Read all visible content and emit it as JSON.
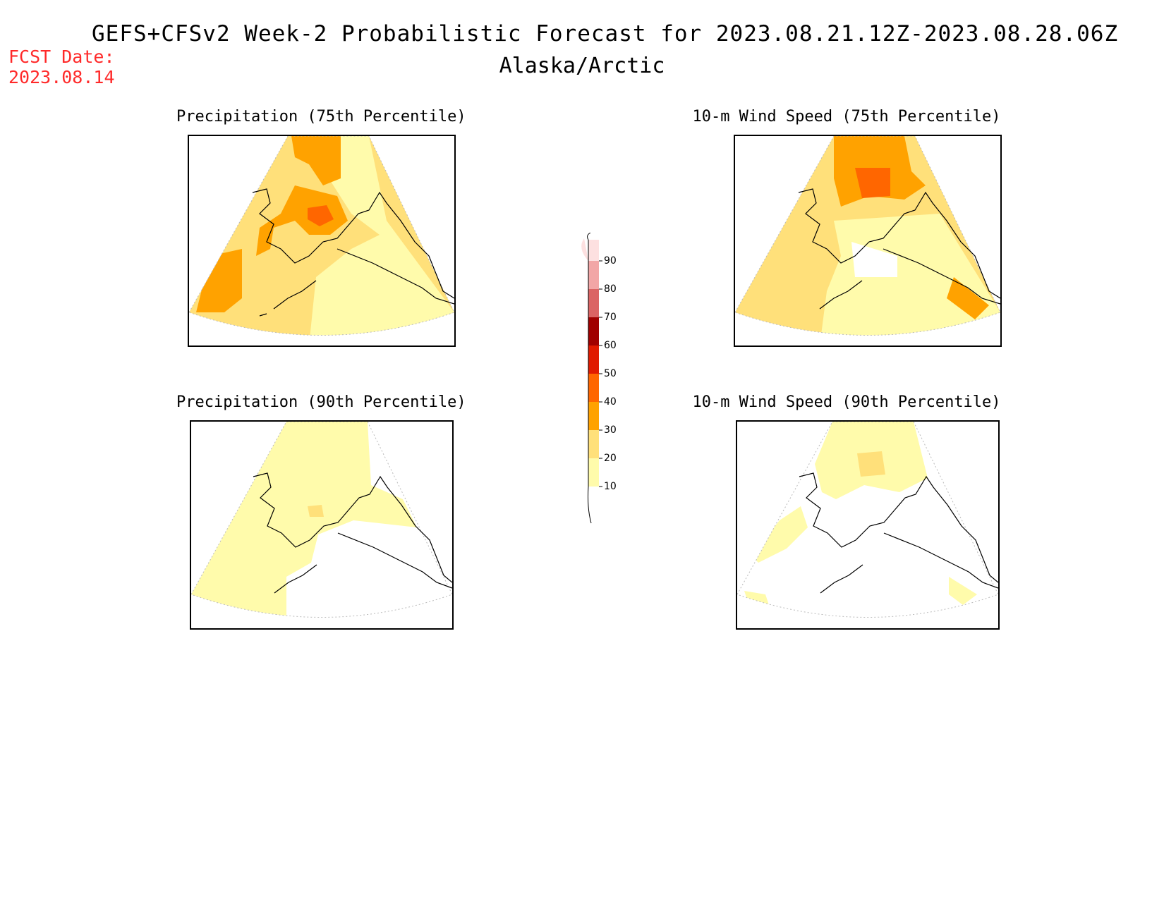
{
  "header": {
    "title": "GEFS+CFSv2 Week-2 Probabilistic Forecast for 2023.08.21.12Z-2023.08.28.06Z",
    "subtitle": "Alaska/Arctic",
    "fcst_label": "FCST Date:",
    "fcst_date": "2023.08.14"
  },
  "panels": [
    {
      "title": "Precipitation (75th Percentile)"
    },
    {
      "title": "10-m Wind Speed (75th Percentile)"
    },
    {
      "title": "Precipitation (90th Percentile)"
    },
    {
      "title": "10-m Wind Speed (90th Percentile)"
    }
  ],
  "colorbar": {
    "levels": [
      "90",
      "80",
      "70",
      "60",
      "50",
      "40",
      "30",
      "20",
      "10"
    ],
    "colors": {
      "above90": "#fde0e0",
      "80-90": "#f2a6a6",
      "70-80": "#db6464",
      "60-70": "#a00000",
      "50-60": "#e01a00",
      "40-50": "#ff6600",
      "30-40": "#ffa200",
      "20-30": "#ffe07a",
      "10-20": "#fffbab"
    }
  }
}
